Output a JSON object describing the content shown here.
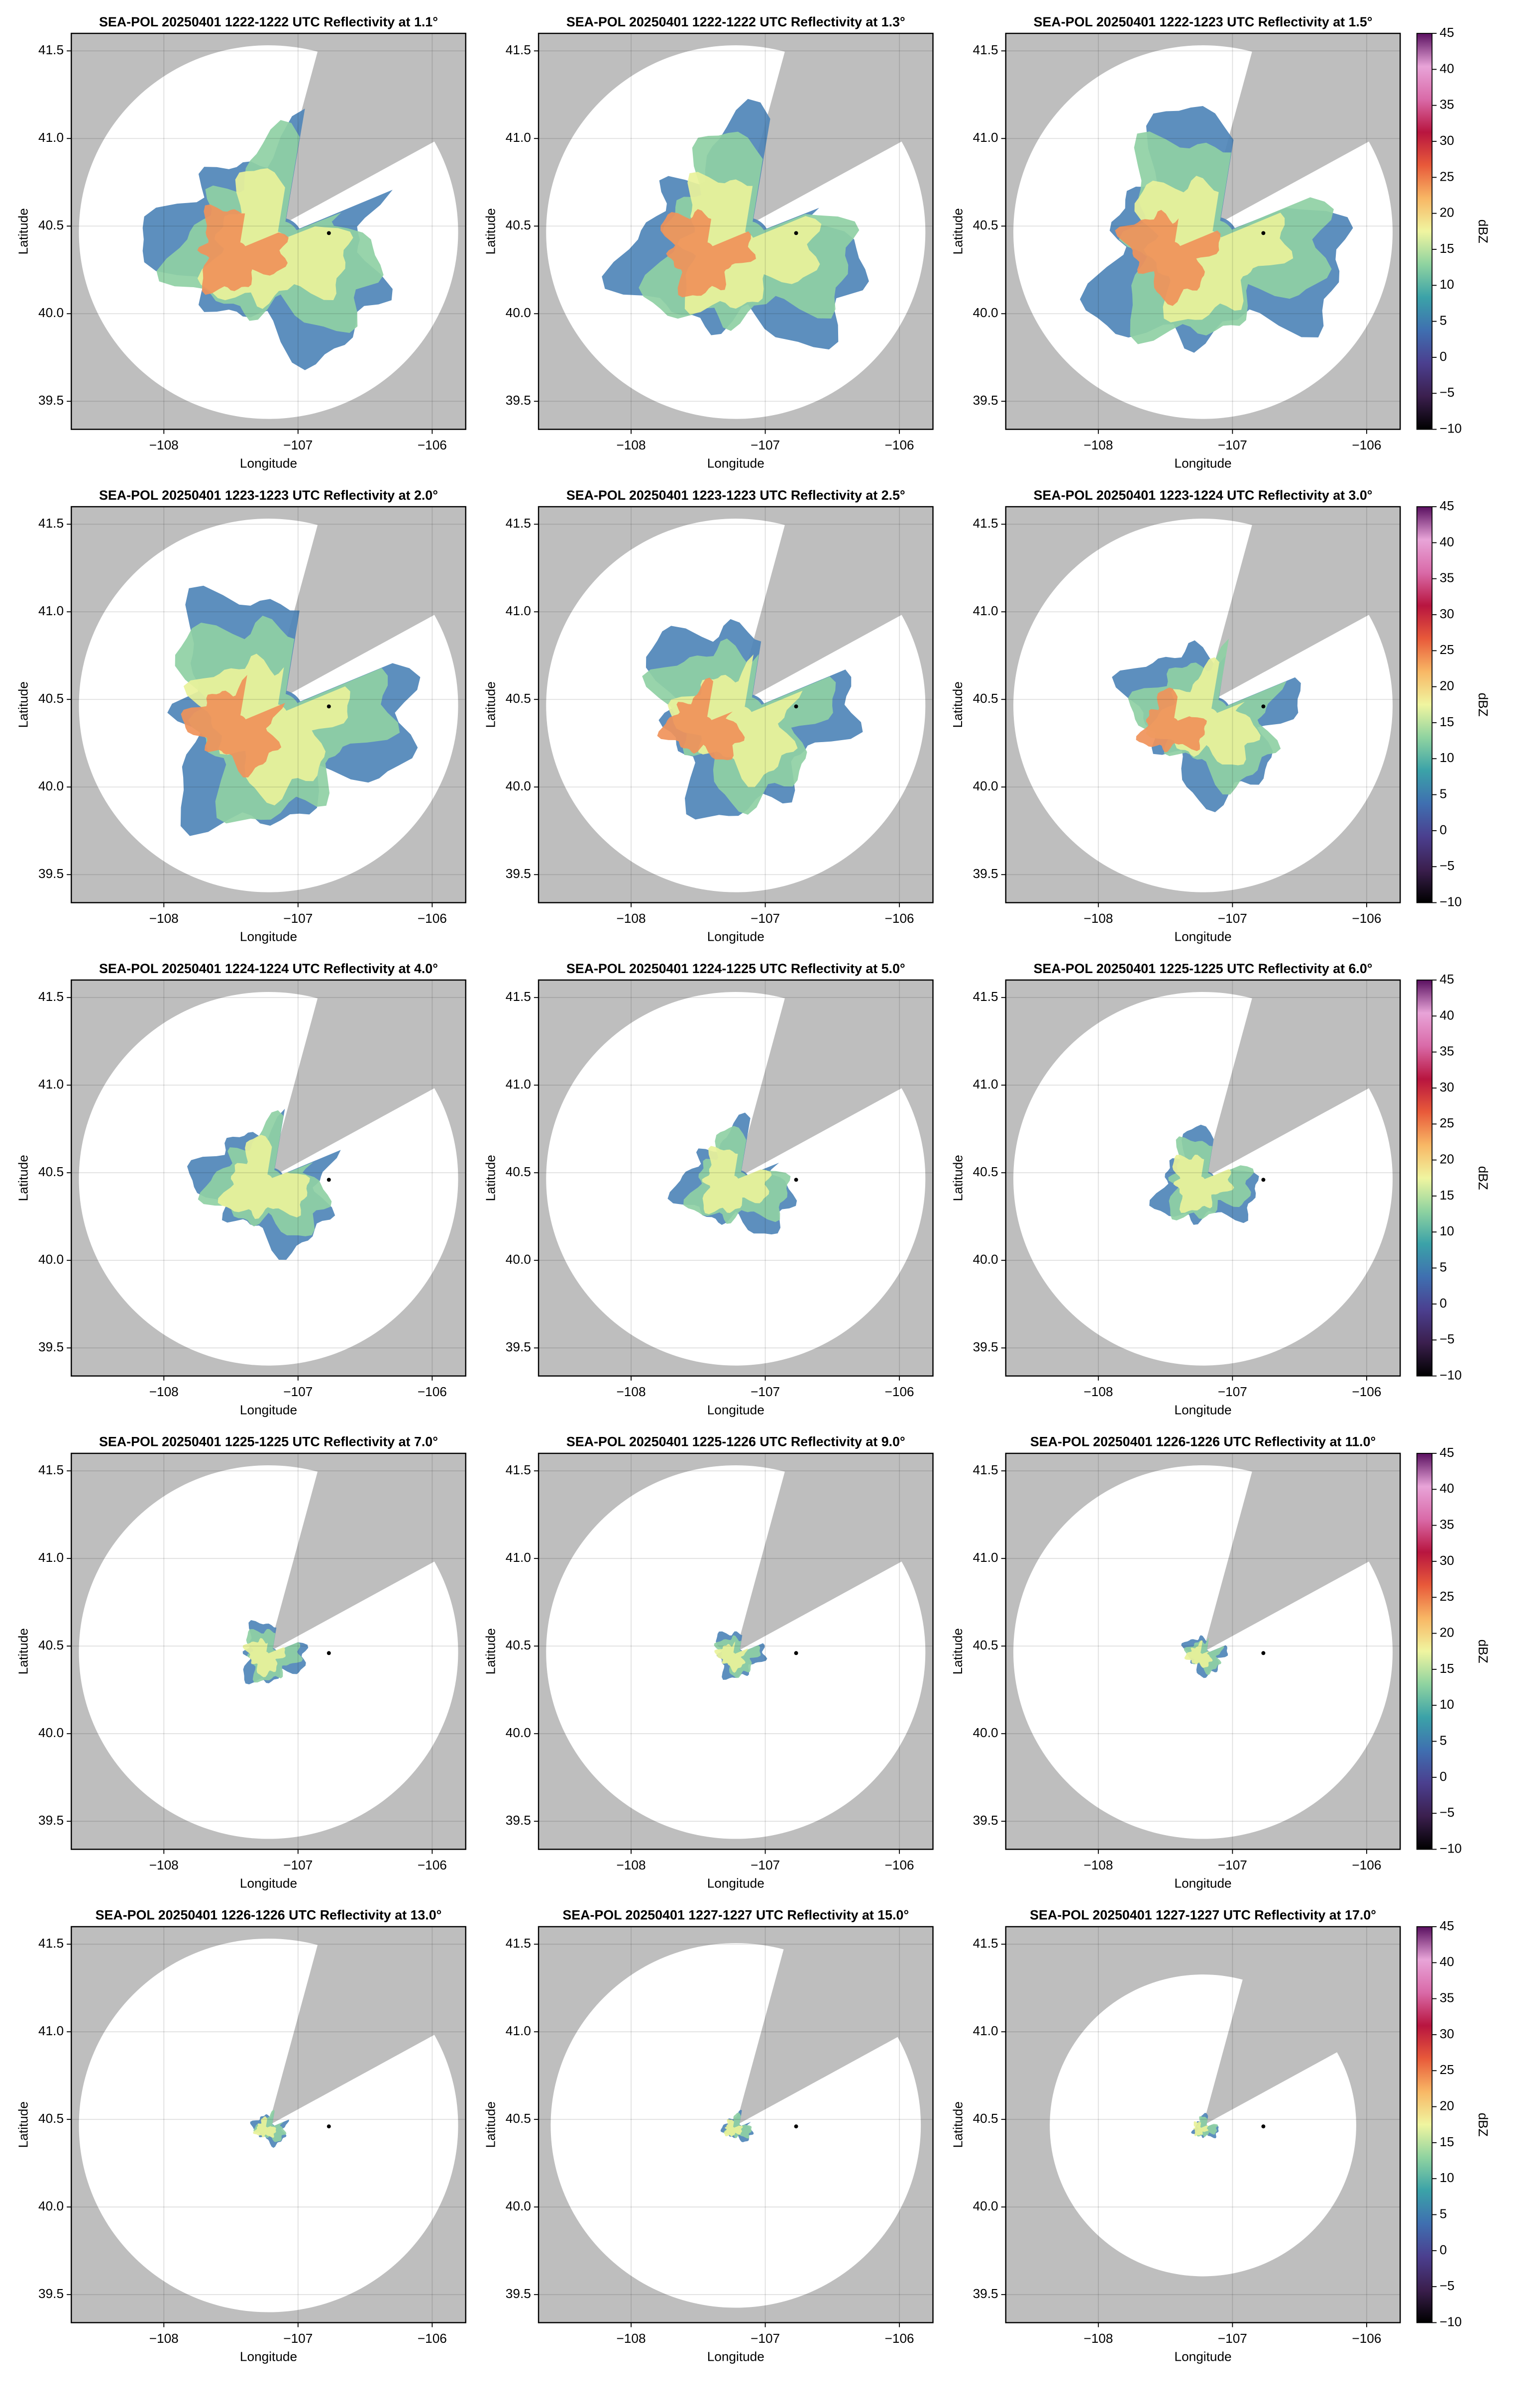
{
  "chart_data": [
    {
      "type": "radar",
      "title": "SEA-POL 20250401 1222-1222 UTC Reflectivity at 1.1°",
      "xlabel": "Longitude",
      "ylabel": "Latitude",
      "xlim": [
        -108.69,
        -105.75
      ],
      "ylim": [
        39.34,
        41.6
      ],
      "xticks": [
        {
          "value": -108,
          "label": "−108"
        },
        {
          "value": -107,
          "label": "−107"
        },
        {
          "value": -106,
          "label": "−106"
        }
      ],
      "yticks": [
        39.5,
        {
          "value": 40,
          "label": "40.0"
        },
        40.5,
        {
          "value": 41,
          "label": "41.0"
        },
        41.5
      ],
      "grid": true,
      "points": {
        "x": [
          -106.77
        ],
        "y": [
          40.46
        ]
      }
    },
    {
      "type": "radar",
      "title": "SEA-POL 20250401 1222-1222 UTC Reflectivity at 1.3°",
      "xlabel": "Longitude",
      "ylabel": "Latitude",
      "xlim": [
        -108.69,
        -105.75
      ],
      "ylim": [
        39.34,
        41.6
      ],
      "xticks": [
        {
          "value": -108,
          "label": "−108"
        },
        {
          "value": -107,
          "label": "−107"
        },
        {
          "value": -106,
          "label": "−106"
        }
      ],
      "yticks": [
        39.5,
        {
          "value": 40,
          "label": "40.0"
        },
        40.5,
        {
          "value": 41,
          "label": "41.0"
        },
        41.5
      ],
      "grid": true,
      "points": {
        "x": [
          -106.77
        ],
        "y": [
          40.46
        ]
      }
    },
    {
      "type": "radar",
      "title": "SEA-POL 20250401 1222-1223 UTC Reflectivity at 1.5°",
      "xlabel": "Longitude",
      "ylabel": "Latitude",
      "xlim": [
        -108.69,
        -105.75
      ],
      "ylim": [
        39.34,
        41.6
      ],
      "xticks": [
        {
          "value": -108,
          "label": "−108"
        },
        {
          "value": -107,
          "label": "−107"
        },
        {
          "value": -106,
          "label": "−106"
        }
      ],
      "yticks": [
        39.5,
        {
          "value": 40,
          "label": "40.0"
        },
        40.5,
        {
          "value": 41,
          "label": "41.0"
        },
        41.5
      ],
      "grid": true,
      "points": {
        "x": [
          -106.77
        ],
        "y": [
          40.46
        ]
      },
      "colorbar": {
        "label": "dBZ",
        "lim": [
          -10,
          45
        ],
        "ticks": [
          {
            "value": -10,
            "label": "−10"
          },
          {
            "value": -5,
            "label": "−5"
          },
          0,
          5,
          10,
          15,
          20,
          25,
          30,
          35,
          40,
          45
        ],
        "colors": [
          "#000000",
          "#3b1f4e",
          "#4b3f8f",
          "#3f6fb0",
          "#3ba2a8",
          "#8fd3a0",
          "#f0f5a0",
          "#f8b765",
          "#e85a3a",
          "#b8153f",
          "#d96aa8",
          "#e8a4d8",
          "#5a1060"
        ]
      }
    },
    {
      "type": "radar",
      "title": "SEA-POL 20250401 1223-1223 UTC Reflectivity at 2.0°",
      "xlabel": "Longitude",
      "ylabel": "Latitude",
      "xlim": [
        -108.69,
        -105.75
      ],
      "ylim": [
        39.34,
        41.6
      ],
      "xticks": [
        {
          "value": -108,
          "label": "−108"
        },
        {
          "value": -107,
          "label": "−107"
        },
        {
          "value": -106,
          "label": "−106"
        }
      ],
      "yticks": [
        39.5,
        {
          "value": 40,
          "label": "40.0"
        },
        40.5,
        {
          "value": 41,
          "label": "41.0"
        },
        41.5
      ],
      "grid": true,
      "points": {
        "x": [
          -106.77
        ],
        "y": [
          40.46
        ]
      }
    },
    {
      "type": "radar",
      "title": "SEA-POL 20250401 1223-1223 UTC Reflectivity at 2.5°",
      "xlabel": "Longitude",
      "ylabel": "Latitude",
      "xlim": [
        -108.69,
        -105.75
      ],
      "ylim": [
        39.34,
        41.6
      ],
      "xticks": [
        {
          "value": -108,
          "label": "−108"
        },
        {
          "value": -107,
          "label": "−107"
        },
        {
          "value": -106,
          "label": "−106"
        }
      ],
      "yticks": [
        39.5,
        {
          "value": 40,
          "label": "40.0"
        },
        40.5,
        {
          "value": 41,
          "label": "41.0"
        },
        41.5
      ],
      "grid": true,
      "points": {
        "x": [
          -106.77
        ],
        "y": [
          40.46
        ]
      }
    },
    {
      "type": "radar",
      "title": "SEA-POL 20250401 1223-1224 UTC Reflectivity at 3.0°",
      "xlabel": "Longitude",
      "ylabel": "Latitude",
      "xlim": [
        -108.69,
        -105.75
      ],
      "ylim": [
        39.34,
        41.6
      ],
      "xticks": [
        {
          "value": -108,
          "label": "−108"
        },
        {
          "value": -107,
          "label": "−107"
        },
        {
          "value": -106,
          "label": "−106"
        }
      ],
      "yticks": [
        39.5,
        {
          "value": 40,
          "label": "40.0"
        },
        40.5,
        {
          "value": 41,
          "label": "41.0"
        },
        41.5
      ],
      "grid": true,
      "points": {
        "x": [
          -106.77
        ],
        "y": [
          40.46
        ]
      },
      "colorbar": {
        "label": "dBZ",
        "lim": [
          -10,
          45
        ],
        "ticks": [
          {
            "value": -10,
            "label": "−10"
          },
          {
            "value": -5,
            "label": "−5"
          },
          0,
          5,
          10,
          15,
          20,
          25,
          30,
          35,
          40,
          45
        ],
        "colors": [
          "#000000",
          "#3b1f4e",
          "#4b3f8f",
          "#3f6fb0",
          "#3ba2a8",
          "#8fd3a0",
          "#f0f5a0",
          "#f8b765",
          "#e85a3a",
          "#b8153f",
          "#d96aa8",
          "#e8a4d8",
          "#5a1060"
        ]
      }
    },
    {
      "type": "radar",
      "title": "SEA-POL 20250401 1224-1224 UTC Reflectivity at 4.0°",
      "xlabel": "Longitude",
      "ylabel": "Latitude",
      "xlim": [
        -108.69,
        -105.75
      ],
      "ylim": [
        39.34,
        41.6
      ],
      "xticks": [
        {
          "value": -108,
          "label": "−108"
        },
        {
          "value": -107,
          "label": "−107"
        },
        {
          "value": -106,
          "label": "−106"
        }
      ],
      "yticks": [
        39.5,
        {
          "value": 40,
          "label": "40.0"
        },
        40.5,
        {
          "value": 41,
          "label": "41.0"
        },
        41.5
      ],
      "grid": true,
      "points": {
        "x": [
          -106.77
        ],
        "y": [
          40.46
        ]
      }
    },
    {
      "type": "radar",
      "title": "SEA-POL 20250401 1224-1225 UTC Reflectivity at 5.0°",
      "xlabel": "Longitude",
      "ylabel": "Latitude",
      "xlim": [
        -108.69,
        -105.75
      ],
      "ylim": [
        39.34,
        41.6
      ],
      "xticks": [
        {
          "value": -108,
          "label": "−108"
        },
        {
          "value": -107,
          "label": "−107"
        },
        {
          "value": -106,
          "label": "−106"
        }
      ],
      "yticks": [
        39.5,
        {
          "value": 40,
          "label": "40.0"
        },
        40.5,
        {
          "value": 41,
          "label": "41.0"
        },
        41.5
      ],
      "grid": true,
      "points": {
        "x": [
          -106.77
        ],
        "y": [
          40.46
        ]
      }
    },
    {
      "type": "radar",
      "title": "SEA-POL 20250401 1225-1225 UTC Reflectivity at 6.0°",
      "xlabel": "Longitude",
      "ylabel": "Latitude",
      "xlim": [
        -108.69,
        -105.75
      ],
      "ylim": [
        39.34,
        41.6
      ],
      "xticks": [
        {
          "value": -108,
          "label": "−108"
        },
        {
          "value": -107,
          "label": "−107"
        },
        {
          "value": -106,
          "label": "−106"
        }
      ],
      "yticks": [
        39.5,
        {
          "value": 40,
          "label": "40.0"
        },
        40.5,
        {
          "value": 41,
          "label": "41.0"
        },
        41.5
      ],
      "grid": true,
      "points": {
        "x": [
          -106.77
        ],
        "y": [
          40.46
        ]
      },
      "colorbar": {
        "label": "dBZ",
        "lim": [
          -10,
          45
        ],
        "ticks": [
          {
            "value": -10,
            "label": "−10"
          },
          {
            "value": -5,
            "label": "−5"
          },
          0,
          5,
          10,
          15,
          20,
          25,
          30,
          35,
          40,
          45
        ],
        "colors": [
          "#000000",
          "#3b1f4e",
          "#4b3f8f",
          "#3f6fb0",
          "#3ba2a8",
          "#8fd3a0",
          "#f0f5a0",
          "#f8b765",
          "#e85a3a",
          "#b8153f",
          "#d96aa8",
          "#e8a4d8",
          "#5a1060"
        ]
      }
    },
    {
      "type": "radar",
      "title": "SEA-POL 20250401 1225-1225 UTC Reflectivity at 7.0°",
      "xlabel": "Longitude",
      "ylabel": "Latitude",
      "xlim": [
        -108.69,
        -105.75
      ],
      "ylim": [
        39.34,
        41.6
      ],
      "xticks": [
        {
          "value": -108,
          "label": "−108"
        },
        {
          "value": -107,
          "label": "−107"
        },
        {
          "value": -106,
          "label": "−106"
        }
      ],
      "yticks": [
        39.5,
        {
          "value": 40,
          "label": "40.0"
        },
        40.5,
        {
          "value": 41,
          "label": "41.0"
        },
        41.5
      ],
      "grid": true,
      "points": {
        "x": [
          -106.77
        ],
        "y": [
          40.46
        ]
      }
    },
    {
      "type": "radar",
      "title": "SEA-POL 20250401 1225-1226 UTC Reflectivity at 9.0°",
      "xlabel": "Longitude",
      "ylabel": "Latitude",
      "xlim": [
        -108.69,
        -105.75
      ],
      "ylim": [
        39.34,
        41.6
      ],
      "xticks": [
        {
          "value": -108,
          "label": "−108"
        },
        {
          "value": -107,
          "label": "−107"
        },
        {
          "value": -106,
          "label": "−106"
        }
      ],
      "yticks": [
        39.5,
        {
          "value": 40,
          "label": "40.0"
        },
        40.5,
        {
          "value": 41,
          "label": "41.0"
        },
        41.5
      ],
      "grid": true,
      "points": {
        "x": [
          -106.77
        ],
        "y": [
          40.46
        ]
      }
    },
    {
      "type": "radar",
      "title": "SEA-POL 20250401 1226-1226 UTC Reflectivity at 11.0°",
      "xlabel": "Longitude",
      "ylabel": "Latitude",
      "xlim": [
        -108.69,
        -105.75
      ],
      "ylim": [
        39.34,
        41.6
      ],
      "xticks": [
        {
          "value": -108,
          "label": "−108"
        },
        {
          "value": -107,
          "label": "−107"
        },
        {
          "value": -106,
          "label": "−106"
        }
      ],
      "yticks": [
        39.5,
        {
          "value": 40,
          "label": "40.0"
        },
        40.5,
        {
          "value": 41,
          "label": "41.0"
        },
        41.5
      ],
      "grid": true,
      "points": {
        "x": [
          -106.77
        ],
        "y": [
          40.46
        ]
      },
      "colorbar": {
        "label": "dBZ",
        "lim": [
          -10,
          45
        ],
        "ticks": [
          {
            "value": -10,
            "label": "−10"
          },
          {
            "value": -5,
            "label": "−5"
          },
          0,
          5,
          10,
          15,
          20,
          25,
          30,
          35,
          40,
          45
        ],
        "colors": [
          "#000000",
          "#3b1f4e",
          "#4b3f8f",
          "#3f6fb0",
          "#3ba2a8",
          "#8fd3a0",
          "#f0f5a0",
          "#f8b765",
          "#e85a3a",
          "#b8153f",
          "#d96aa8",
          "#e8a4d8",
          "#5a1060"
        ]
      }
    },
    {
      "type": "radar",
      "title": "SEA-POL 20250401 1226-1226 UTC Reflectivity at 13.0°",
      "xlabel": "Longitude",
      "ylabel": "Latitude",
      "xlim": [
        -108.69,
        -105.75
      ],
      "ylim": [
        39.34,
        41.6
      ],
      "xticks": [
        {
          "value": -108,
          "label": "−108"
        },
        {
          "value": -107,
          "label": "−107"
        },
        {
          "value": -106,
          "label": "−106"
        }
      ],
      "yticks": [
        39.5,
        {
          "value": 40,
          "label": "40.0"
        },
        40.5,
        {
          "value": 41,
          "label": "41.0"
        },
        41.5
      ],
      "grid": true,
      "points": {
        "x": [
          -106.77
        ],
        "y": [
          40.46
        ]
      }
    },
    {
      "type": "radar",
      "title": "SEA-POL 20250401 1227-1227 UTC Reflectivity at 15.0°",
      "xlabel": "Longitude",
      "ylabel": "Latitude",
      "xlim": [
        -108.69,
        -105.75
      ],
      "ylim": [
        39.34,
        41.6
      ],
      "xticks": [
        {
          "value": -108,
          "label": "−108"
        },
        {
          "value": -107,
          "label": "−107"
        },
        {
          "value": -106,
          "label": "−106"
        }
      ],
      "yticks": [
        39.5,
        {
          "value": 40,
          "label": "40.0"
        },
        40.5,
        {
          "value": 41,
          "label": "41.0"
        },
        41.5
      ],
      "grid": true,
      "points": {
        "x": [
          -106.77
        ],
        "y": [
          40.46
        ]
      }
    },
    {
      "type": "radar",
      "title": "SEA-POL 20250401 1227-1227 UTC Reflectivity at 17.0°",
      "xlabel": "Longitude",
      "ylabel": "Latitude",
      "xlim": [
        -108.69,
        -105.75
      ],
      "ylim": [
        39.34,
        41.6
      ],
      "xticks": [
        {
          "value": -108,
          "label": "−108"
        },
        {
          "value": -107,
          "label": "−107"
        },
        {
          "value": -106,
          "label": "−106"
        }
      ],
      "yticks": [
        39.5,
        {
          "value": 40,
          "label": "40.0"
        },
        40.5,
        {
          "value": 41,
          "label": "41.0"
        },
        41.5
      ],
      "grid": true,
      "points": {
        "x": [
          -106.77
        ],
        "y": [
          40.46
        ]
      },
      "colorbar": {
        "label": "dBZ",
        "lim": [
          -10,
          45
        ],
        "ticks": [
          {
            "value": -10,
            "label": "−10"
          },
          {
            "value": -5,
            "label": "−5"
          },
          0,
          5,
          10,
          15,
          20,
          25,
          30,
          35,
          40,
          45
        ],
        "colors": [
          "#000000",
          "#3b1f4e",
          "#4b3f8f",
          "#3f6fb0",
          "#3ba2a8",
          "#8fd3a0",
          "#f0f5a0",
          "#f8b765",
          "#e85a3a",
          "#b8153f",
          "#d96aa8",
          "#e8a4d8",
          "#5a1060"
        ]
      }
    }
  ]
}
